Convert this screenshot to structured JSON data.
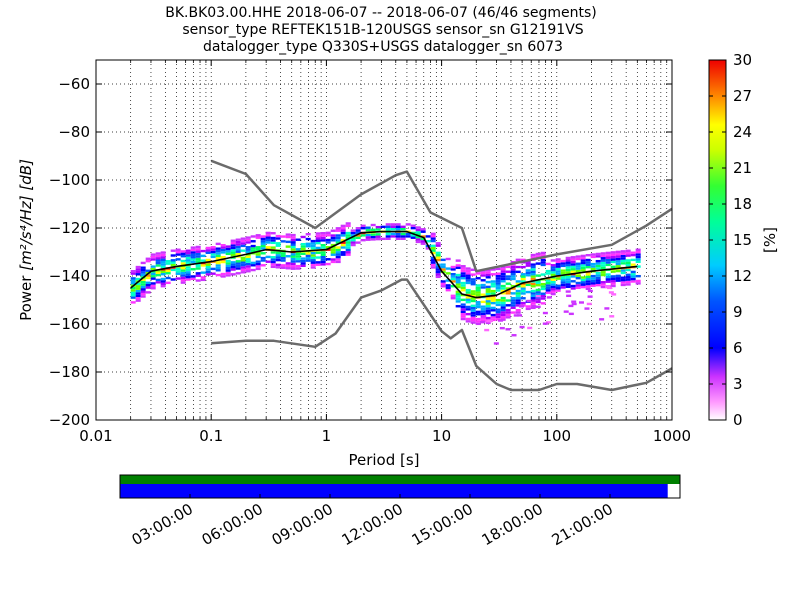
{
  "title_lines": [
    "BK.BK03.00.HHE   2018-06-07 -- 2018-06-07  (46/46 segments)",
    "sensor_type REFTEK151B-120USGS sensor_sn G12191VS",
    "datalogger_type Q330S+USGS datalogger_sn 6073"
  ],
  "colors": {
    "model_curve": "#6b6b6b",
    "mean_curve": "#000000",
    "coverage_top": "#008000",
    "coverage_bottom": "#0000ff"
  },
  "chart_data": {
    "type": "heatmap",
    "xscale": "log",
    "xlim": [
      0.01,
      1000
    ],
    "ylim": [
      -200,
      -50
    ],
    "xlabel": "Period [s]",
    "ylabel_prefix": "Power ",
    "ylabel_units": "[m²/s⁴/Hz] [dB]",
    "x_ticks": [
      0.01,
      0.1,
      1,
      10,
      100,
      1000
    ],
    "x_tick_labels": [
      "0.01",
      "0.1",
      "1",
      "10",
      "100",
      "1000"
    ],
    "y_ticks": [
      -200,
      -180,
      -160,
      -140,
      -120,
      -100,
      -80,
      -60
    ],
    "y_tick_labels": [
      "−200",
      "−180",
      "−160",
      "−140",
      "−120",
      "−100",
      "−80",
      "−60"
    ],
    "grid": true,
    "colorbar": {
      "label": "[%]",
      "range": [
        0,
        30
      ],
      "ticks": [
        0,
        3,
        6,
        9,
        12,
        15,
        18,
        21,
        24,
        27,
        30
      ]
    },
    "high_noise_model": {
      "x": [
        0.1,
        0.2,
        0.35,
        0.8,
        2,
        4,
        5,
        8,
        15,
        20,
        50,
        100,
        300,
        600,
        1000
      ],
      "y": [
        -92,
        -97.5,
        -110.5,
        -120,
        -106,
        -98,
        -96.5,
        -113.5,
        -120,
        -138,
        -134,
        -131,
        -127,
        -119,
        -112
      ]
    },
    "low_noise_model": {
      "x": [
        0.1,
        0.2,
        0.35,
        0.8,
        1.2,
        2,
        3,
        4.5,
        5,
        10,
        12,
        15,
        20,
        30,
        40,
        70,
        100,
        150,
        300,
        600,
        1000
      ],
      "y": [
        -168,
        -167,
        -167,
        -169.5,
        -164,
        -149,
        -146,
        -141.5,
        -141.5,
        -163,
        -166,
        -162.5,
        -177.5,
        -185,
        -187.5,
        -187.5,
        -185,
        -185,
        -187.5,
        -184.5,
        -178.5
      ]
    },
    "mean_psd": {
      "x": [
        0.02,
        0.03,
        0.05,
        0.1,
        0.2,
        0.3,
        0.5,
        1,
        2,
        3,
        5,
        7,
        10,
        15,
        20,
        30,
        50,
        100,
        200,
        500
      ],
      "y": [
        -145,
        -138,
        -136,
        -134,
        -131,
        -129,
        -130,
        -129,
        -122,
        -121.5,
        -121.5,
        -124,
        -138,
        -147.5,
        -149,
        -148,
        -143,
        -140,
        -138,
        -136
      ]
    },
    "coverage_timeline": {
      "tick_labels": [
        "03:00:00",
        "06:00:00",
        "09:00:00",
        "12:00:00",
        "15:00:00",
        "18:00:00",
        "21:00:00"
      ],
      "data_fraction": 0.978
    }
  }
}
